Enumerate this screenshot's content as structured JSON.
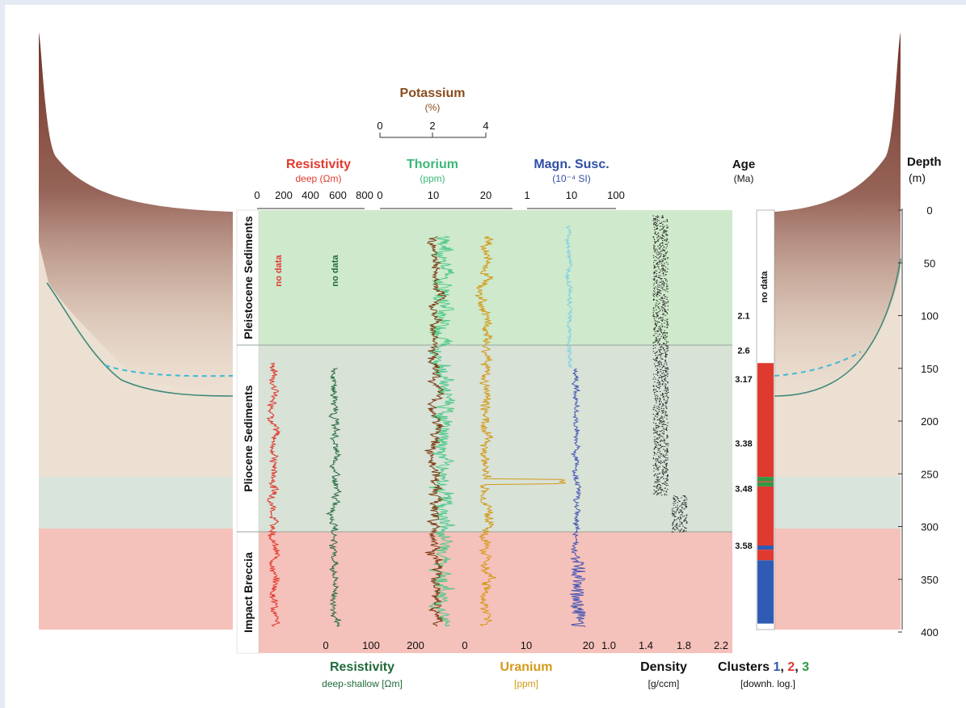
{
  "chart_data": {
    "type": "line",
    "depth_axis": {
      "title": "Depth",
      "unit": "(m)",
      "ticks": [
        0,
        50,
        100,
        150,
        200,
        250,
        300,
        350,
        400
      ],
      "range": [
        0,
        420
      ]
    },
    "age_axis": {
      "title": "Age",
      "unit": "(Ma)",
      "labels": [
        {
          "label": "2.1",
          "depth": 100
        },
        {
          "label": "2.6",
          "depth": 133
        },
        {
          "label": "3.17",
          "depth": 160
        },
        {
          "label": "3.38",
          "depth": 221
        },
        {
          "label": "3.48",
          "depth": 264
        },
        {
          "label": "3.58",
          "depth": 318
        }
      ]
    },
    "units": [
      {
        "name": "Pleistocene Sediments",
        "top": 0,
        "bottom": 128,
        "color": "#cfe9cc"
      },
      {
        "name": "Pliocene Sediments",
        "top": 128,
        "bottom": 305,
        "color": "#d8e2d7"
      },
      {
        "name": "Impact Breccia",
        "top": 305,
        "bottom": 420,
        "color": "#f5c1bb"
      }
    ],
    "top_axes": [
      {
        "title": "Potassium",
        "unit": "(%)",
        "color": "#8a4c1d",
        "ticks": [
          "0",
          "2",
          "4"
        ],
        "range": [
          0,
          4
        ]
      },
      {
        "title": "Resistivity",
        "unit": "deep (Ωm)",
        "color": "#e0392f",
        "ticks": [
          "0",
          "200",
          "400",
          "600",
          "800"
        ],
        "range": [
          0,
          800
        ]
      },
      {
        "title": "Thorium",
        "unit": "(ppm)",
        "color": "#3cb878",
        "ticks": [
          "0",
          "10",
          "20"
        ],
        "range": [
          0,
          25
        ]
      },
      {
        "title": "Magn. Susc.",
        "unit": "(10⁻⁴ SI)",
        "color": "#2f4fa6",
        "ticks": [
          "1",
          "10",
          "100"
        ],
        "range": [
          1,
          100
        ],
        "scale": "log"
      }
    ],
    "bottom_axes": [
      {
        "title": "Resistivity",
        "unit": "deep-shallow [Ωm]",
        "color": "#1f6b3a",
        "ticks": [
          "0",
          "100",
          "200"
        ],
        "range": [
          -60,
          240
        ]
      },
      {
        "title": "Uranium",
        "unit": "[ppm]",
        "color": "#d49a1a",
        "ticks": [
          "0",
          "10",
          "20"
        ],
        "range": [
          0,
          20
        ]
      },
      {
        "title": "Density",
        "unit": "[g/ccm]",
        "color": "#111111",
        "ticks": [
          "1.0",
          "1.4",
          "1.8",
          "2.2"
        ],
        "range": [
          1.0,
          2.2
        ]
      },
      {
        "title": "Clusters",
        "unit": "[downh. log.]",
        "color": "#111111"
      }
    ],
    "cluster_labels": [
      {
        "label": "1",
        "color": "#2f5bb5"
      },
      {
        "label": "2",
        "color": "#e0392f"
      },
      {
        "label": "3",
        "color": "#2f9a44"
      }
    ],
    "no_data_labels": [
      "no data",
      "no data",
      "no data"
    ],
    "series": [
      {
        "name": "Resistivity deep",
        "color": "#e0392f",
        "axis": "Resistivity",
        "top": 145,
        "bottom": 395,
        "mean": 130,
        "spread": 45
      },
      {
        "name": "Resistivity deep-shallow",
        "color": "#2d6e45",
        "axis": "Resistivity deep-shallow",
        "top": 150,
        "bottom": 395,
        "mean": 20,
        "spread": 12
      },
      {
        "name": "Thorium",
        "color": "#50c98a",
        "axis": "Thorium",
        "top": 25,
        "bottom": 395,
        "mean": 12,
        "spread": 2.5
      },
      {
        "name": "Potassium",
        "color": "#7a3e14",
        "axis": "Potassium",
        "top": 25,
        "bottom": 395,
        "mean": 2.1,
        "spread": 0.3
      },
      {
        "name": "Uranium",
        "color": "#d49a1a",
        "axis": "Uranium",
        "top": 25,
        "bottom": 395,
        "mean": 3.5,
        "spread": 1.2
      },
      {
        "name": "Magn. Susc. (sediments)",
        "color": "#7fd0e6",
        "axis": "Magn. Susc.",
        "top": 15,
        "bottom": 150,
        "mean": 9,
        "spread": 1.6
      },
      {
        "name": "Magn. Susc.",
        "color": "#4857b3",
        "axis": "Magn. Susc.",
        "top": 150,
        "bottom": 395,
        "mean": 13,
        "spread": 3
      },
      {
        "name": "Density",
        "color": "#222222",
        "axis": "Density",
        "top": 5,
        "bottom": 305,
        "mean": 1.55,
        "spread": 0.08
      }
    ],
    "clusters": [
      {
        "top": 0,
        "bottom": 145,
        "cluster": "none"
      },
      {
        "top": 145,
        "bottom": 253,
        "cluster": "2"
      },
      {
        "top": 253,
        "bottom": 257,
        "cluster": "3"
      },
      {
        "top": 257,
        "bottom": 258,
        "cluster": "2"
      },
      {
        "top": 258,
        "bottom": 262,
        "cluster": "3"
      },
      {
        "top": 262,
        "bottom": 318,
        "cluster": "2"
      },
      {
        "top": 318,
        "bottom": 322,
        "cluster": "1"
      },
      {
        "top": 322,
        "bottom": 332,
        "cluster": "2"
      },
      {
        "top": 332,
        "bottom": 392,
        "cluster": "1"
      }
    ]
  }
}
